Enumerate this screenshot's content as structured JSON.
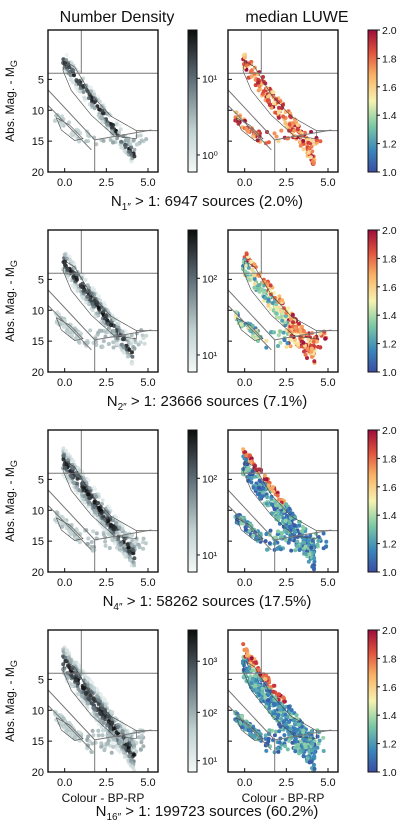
{
  "columns": [
    "Number Density",
    "median LUWE"
  ],
  "ylabel": "Abs. Mag. - M",
  "ylabel_sub": "G",
  "xlabel": "Colour - BP-RP",
  "xticks": [
    "0.0",
    "2.5",
    "5.0"
  ],
  "yticks": [
    "5",
    "10",
    "15",
    "20"
  ],
  "luwe_colorbar": {
    "ticks": [
      "1.0",
      "1.2",
      "1.4",
      "1.6",
      "1.8",
      "2.0"
    ],
    "range": [
      1.0,
      2.0
    ]
  },
  "colors": {
    "density_low": "#f2f6f6",
    "density_high": "#111111",
    "luwe_low": "#3b4da3",
    "luwe_mid": "#f5f3b0",
    "luwe_high": "#9b0d3b",
    "line": "#555555"
  },
  "rows": [
    {
      "caption": "N1″ > 1: 6947 sources (2.0%)",
      "caption_main": "N",
      "caption_sub": "1″",
      "caption_rest": " > 1: 6947 sources (2.0%)",
      "density_ticks": [
        "10⁰",
        "10¹"
      ]
    },
    {
      "caption": "N2″ > 1: 23666 sources (7.1%)",
      "caption_main": "N",
      "caption_sub": "2″",
      "caption_rest": " > 1: 23666 sources (7.1%)",
      "density_ticks": [
        "10¹",
        "10²"
      ]
    },
    {
      "caption": "N4″ > 1: 58262 sources (17.5%)",
      "caption_main": "N",
      "caption_sub": "4″",
      "caption_rest": " > 1: 58262 sources (17.5%)",
      "density_ticks": [
        "10¹",
        "10²"
      ]
    },
    {
      "caption": "N16″ > 1: 199723 sources (60.2%)",
      "caption_main": "N",
      "caption_sub": "16″",
      "caption_rest": " > 1: 199723 sources (60.2%)",
      "density_ticks": [
        "10¹",
        "10²",
        "10³"
      ]
    }
  ],
  "chart_data": [
    {
      "type": "heatmap",
      "title": "Number Density",
      "row": 1,
      "xlabel": "",
      "ylabel": "Abs. Mag. - MG",
      "xlim": [
        -1,
        5.6
      ],
      "ylim": [
        20,
        -3
      ],
      "colorbar_scale": "log",
      "colorbar_range": [
        1,
        40
      ]
    },
    {
      "type": "heatmap",
      "title": "median LUWE",
      "row": 1,
      "xlabel": "",
      "xlim": [
        -1,
        5.6
      ],
      "ylim": [
        20,
        -3
      ],
      "colorbar_range": [
        1.0,
        2.0
      ]
    },
    {
      "type": "heatmap",
      "row": 2,
      "xlabel": "",
      "ylabel": "Abs. Mag. - MG",
      "xlim": [
        -1,
        5.6
      ],
      "ylim": [
        20,
        -3
      ],
      "colorbar_scale": "log",
      "colorbar_range": [
        3,
        200
      ]
    },
    {
      "type": "heatmap",
      "row": 2,
      "xlabel": "",
      "xlim": [
        -1,
        5.6
      ],
      "ylim": [
        20,
        -3
      ],
      "colorbar_range": [
        1.0,
        2.0
      ]
    },
    {
      "type": "heatmap",
      "row": 3,
      "xlabel": "",
      "ylabel": "Abs. Mag. - MG",
      "xlim": [
        -1,
        5.6
      ],
      "ylim": [
        20,
        -3
      ],
      "colorbar_scale": "log",
      "colorbar_range": [
        3,
        700
      ]
    },
    {
      "type": "heatmap",
      "row": 3,
      "xlabel": "",
      "xlim": [
        -1,
        5.6
      ],
      "ylim": [
        20,
        -3
      ],
      "colorbar_range": [
        1.0,
        2.0
      ]
    },
    {
      "type": "heatmap",
      "row": 4,
      "xlabel": "Colour - BP-RP",
      "ylabel": "Abs. Mag. - MG",
      "xlim": [
        -1,
        5.6
      ],
      "ylim": [
        20,
        -3
      ],
      "colorbar_scale": "log",
      "colorbar_range": [
        8,
        2500
      ]
    },
    {
      "type": "heatmap",
      "row": 4,
      "xlabel": "Colour - BP-RP",
      "xlim": [
        -1,
        5.6
      ],
      "ylim": [
        20,
        -3
      ],
      "colorbar_range": [
        1.0,
        2.0
      ]
    }
  ]
}
